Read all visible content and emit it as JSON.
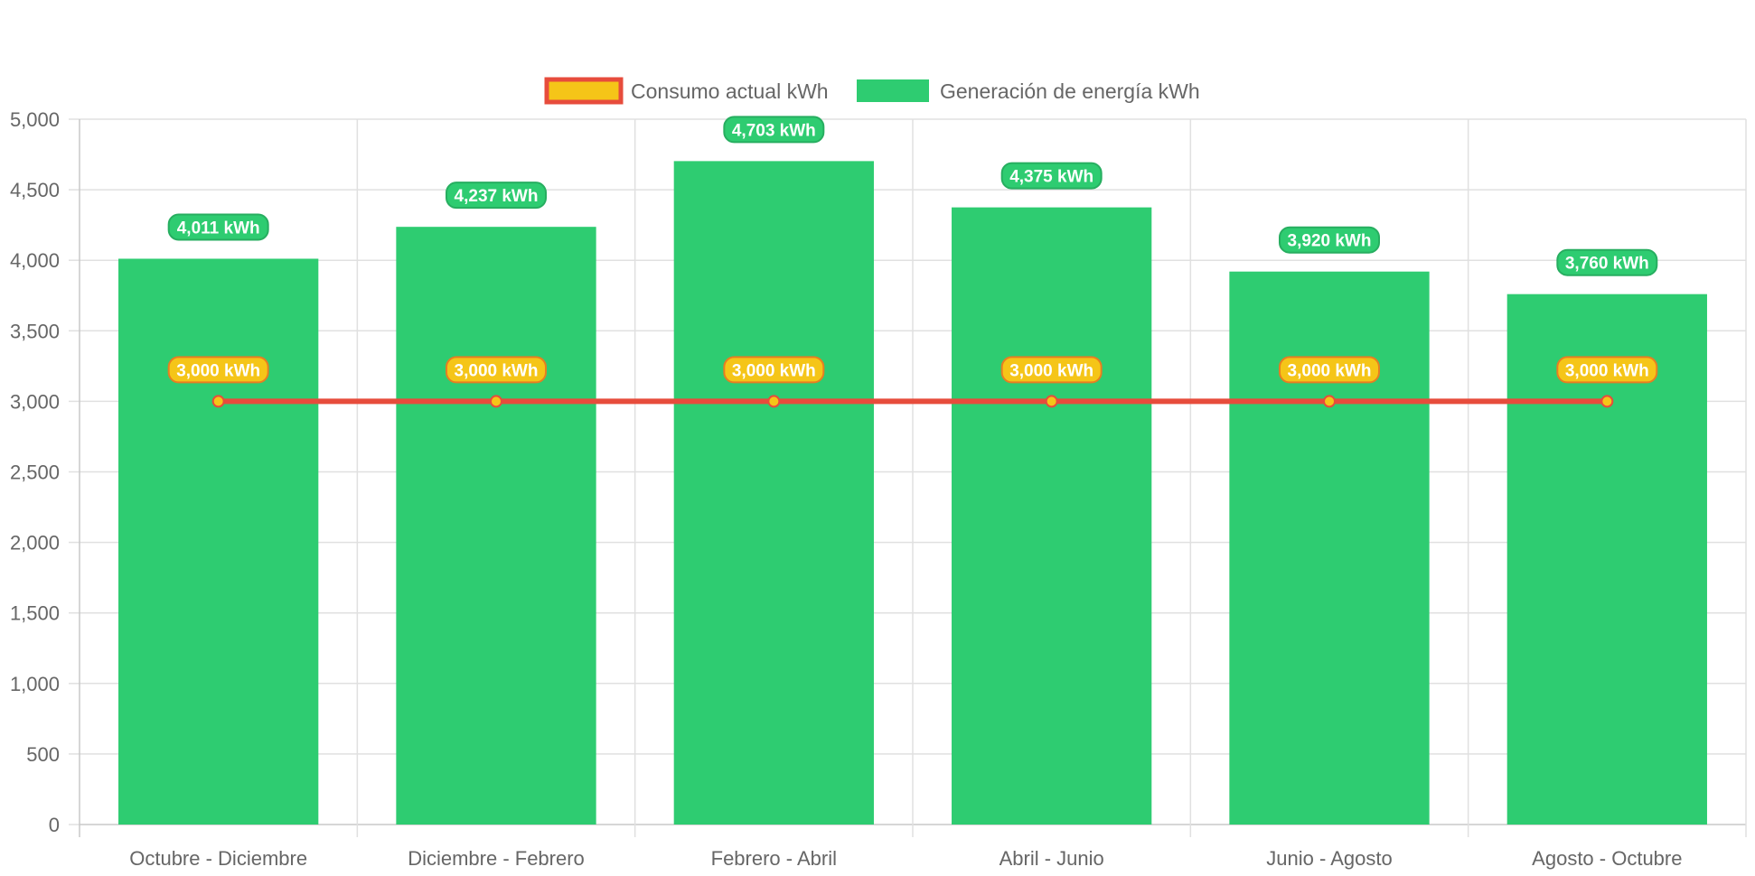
{
  "chart_data": {
    "type": "bar",
    "title": "",
    "xlabel": "",
    "ylabel": "",
    "categories": [
      "Octubre - Diciembre",
      "Diciembre - Febrero",
      "Febrero - Abril",
      "Abril - Junio",
      "Junio - Agosto",
      "Agosto - Octubre"
    ],
    "ylim": [
      0,
      5000
    ],
    "yticks": [
      0,
      500,
      1000,
      1500,
      2000,
      2500,
      3000,
      3500,
      4000,
      4500,
      5000
    ],
    "ytick_labels": [
      "0",
      "500",
      "1,000",
      "1,500",
      "2,000",
      "2,500",
      "3,000",
      "3,500",
      "4,000",
      "4,500",
      "5,000"
    ],
    "grid": true,
    "legend_position": "top",
    "series": [
      {
        "name": "Consumo actual kWh",
        "type": "line",
        "color": "#e74c3c",
        "point_color": "#f5c518",
        "values": [
          3000,
          3000,
          3000,
          3000,
          3000,
          3000
        ],
        "labels": [
          "3,000 kWh",
          "3,000 kWh",
          "3,000 kWh",
          "3,000 kWh",
          "3,000 kWh",
          "3,000 kWh"
        ]
      },
      {
        "name": "Generación de energía kWh",
        "type": "bar",
        "color": "#2ecc71",
        "values": [
          4011,
          4237,
          4703,
          4375,
          3920,
          3760
        ],
        "labels": [
          "4,011 kWh",
          "4,237 kWh",
          "4,703 kWh",
          "4,375 kWh",
          "3,920 kWh",
          "3,760 kWh"
        ]
      }
    ]
  }
}
